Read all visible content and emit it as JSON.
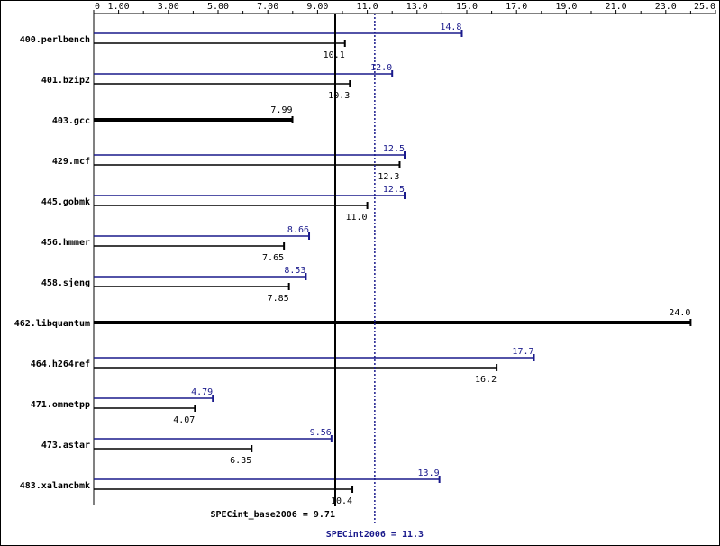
{
  "chart_data": {
    "type": "bar",
    "categories": [
      "400.perlbench",
      "401.bzip2",
      "403.gcc",
      "429.mcf",
      "445.gobmk",
      "456.hmmer",
      "458.sjeng",
      "462.libquantum",
      "464.h264ref",
      "471.omnetpp",
      "473.astar",
      "483.xalancbmk"
    ],
    "series": [
      {
        "color": "#1a1a8c",
        "values": [
          14.8,
          12.0,
          null,
          12.5,
          12.5,
          8.66,
          8.53,
          null,
          17.7,
          4.79,
          9.56,
          13.9
        ],
        "value_labels": [
          "14.8",
          "12.0",
          null,
          "12.5",
          "12.5",
          "8.66",
          "8.53",
          null,
          "17.7",
          "4.79",
          "9.56",
          "13.9"
        ]
      },
      {
        "color": "#000000",
        "values": [
          10.1,
          10.3,
          7.99,
          12.3,
          11.0,
          7.65,
          7.85,
          24.0,
          16.2,
          4.07,
          6.35,
          10.4
        ],
        "value_labels": [
          "10.1",
          "10.3",
          "7.99",
          "12.3",
          "11.0",
          "7.65",
          "7.85",
          "24.0",
          "16.2",
          "4.07",
          "6.35",
          "10.4"
        ]
      }
    ],
    "xlim": [
      0,
      25
    ],
    "xticks": [
      0,
      {
        "value": 1,
        "label": "1.00"
      },
      {
        "value": 3,
        "label": "3.00"
      },
      {
        "value": 5,
        "label": "5.00"
      },
      {
        "value": 7,
        "label": "7.00"
      },
      {
        "value": 9,
        "label": "9.00"
      },
      {
        "value": 11,
        "label": "11.0"
      },
      {
        "value": 13,
        "label": "13.0"
      },
      {
        "value": 15,
        "label": "15.0"
      },
      {
        "value": 17,
        "label": "17.0"
      },
      {
        "value": 19,
        "label": "19.0"
      },
      {
        "value": 21,
        "label": "21.0"
      },
      {
        "value": 23,
        "label": "23.0"
      },
      {
        "value": 25,
        "label": "25.0"
      }
    ],
    "xminorticks": [
      2,
      4,
      6,
      8,
      10,
      12,
      14,
      16,
      18,
      20,
      22,
      24
    ],
    "reference_lines": [
      {
        "value": 9.71,
        "label": "SPECint_base2006 = 9.71",
        "color": "#000000",
        "style": "solid"
      },
      {
        "value": 11.3,
        "label": "SPECint2006 = 11.3",
        "color": "#1a1a8c",
        "style": "dotted"
      }
    ]
  }
}
